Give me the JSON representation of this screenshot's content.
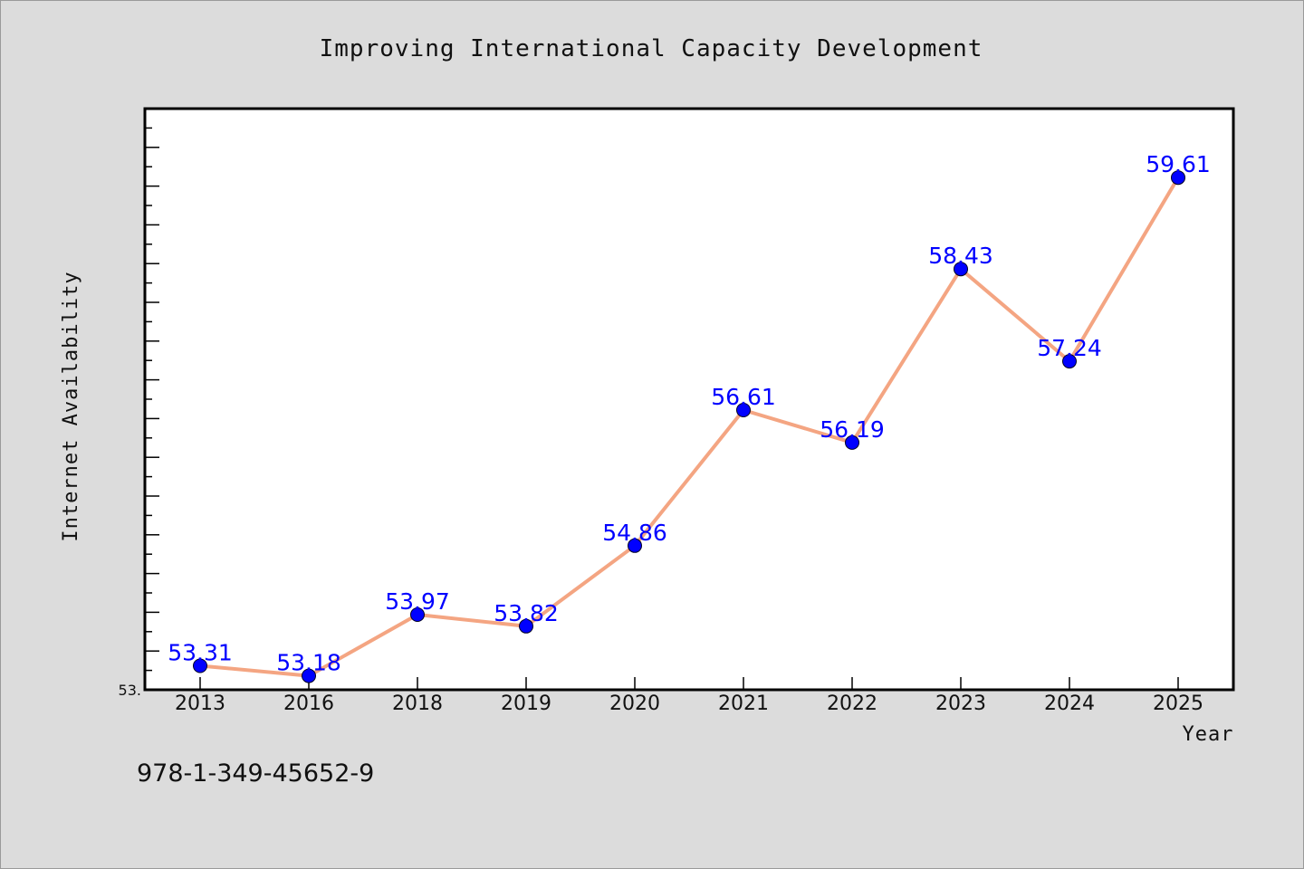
{
  "chart_data": {
    "type": "line",
    "title": "Improving International Capacity Development",
    "xlabel": "Year",
    "ylabel": "Internet Availability",
    "categories": [
      "2013",
      "2016",
      "2018",
      "2019",
      "2020",
      "2021",
      "2022",
      "2023",
      "2024",
      "2025"
    ],
    "series": [
      {
        "values": [
          53.31,
          53.18,
          53.97,
          53.82,
          54.86,
          56.61,
          56.19,
          58.43,
          57.24,
          59.61
        ],
        "labels": [
          "53.31",
          "53.18",
          "53.97",
          "53.82",
          "54.86",
          "56.61",
          "56.19",
          "58.43",
          "57.24",
          "59.61"
        ]
      }
    ],
    "y_min_label": "53.",
    "ylim": [
      53.0,
      60.5
    ],
    "grid": false,
    "legend": "none",
    "line_color": "#f4a582",
    "marker_color": "#0000ff",
    "label_color": "#0000ff"
  },
  "footer": {
    "isbn": "978-1-349-45652-9"
  }
}
